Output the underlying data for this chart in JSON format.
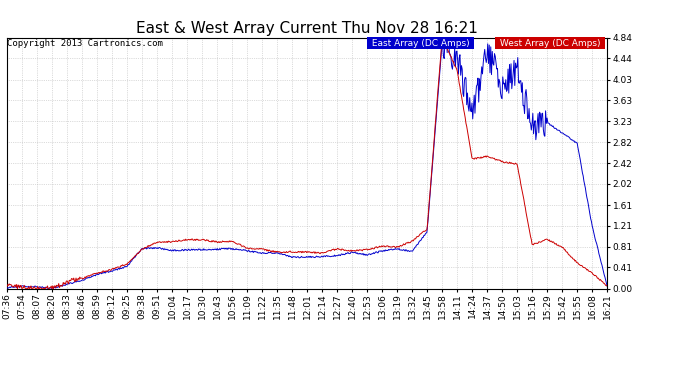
{
  "title": "East & West Array Current Thu Nov 28 16:21",
  "copyright": "Copyright 2013 Cartronics.com",
  "legend_east": "East Array (DC Amps)",
  "legend_west": "West Array (DC Amps)",
  "east_color": "#0000cc",
  "west_color": "#cc0000",
  "background_color": "#ffffff",
  "grid_color": "#bbbbbb",
  "ylim": [
    0.0,
    4.84
  ],
  "yticks": [
    0.0,
    0.41,
    0.81,
    1.21,
    1.61,
    2.02,
    2.42,
    2.82,
    3.23,
    3.63,
    4.03,
    4.44,
    4.84
  ],
  "xtick_labels": [
    "07:36",
    "07:54",
    "08:07",
    "08:20",
    "08:33",
    "08:46",
    "08:59",
    "09:12",
    "09:25",
    "09:38",
    "09:51",
    "10:04",
    "10:17",
    "10:30",
    "10:43",
    "10:56",
    "11:09",
    "11:22",
    "11:35",
    "11:48",
    "12:01",
    "12:14",
    "12:27",
    "12:40",
    "12:53",
    "13:06",
    "13:19",
    "13:32",
    "13:45",
    "13:58",
    "14:11",
    "14:24",
    "14:37",
    "14:50",
    "15:03",
    "15:16",
    "15:29",
    "15:42",
    "15:55",
    "16:08",
    "16:21"
  ],
  "title_fontsize": 11,
  "axis_fontsize": 6.5,
  "copyright_fontsize": 6.5
}
